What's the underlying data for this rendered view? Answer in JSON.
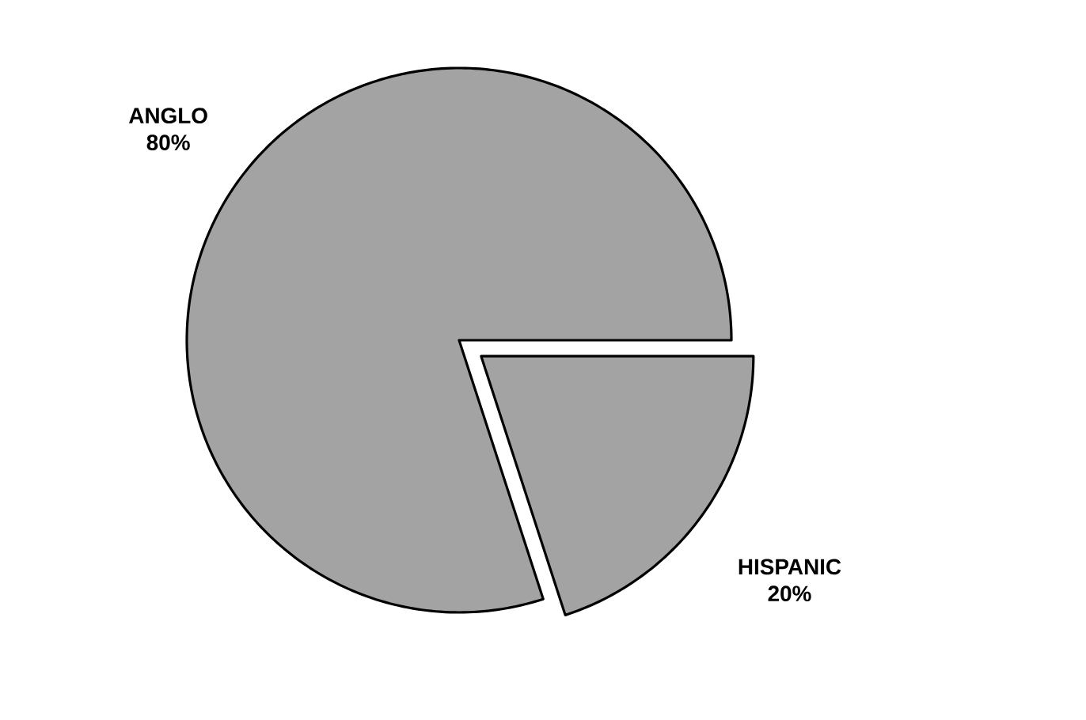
{
  "chart_data": {
    "type": "pie",
    "categories": [
      "ANGLO",
      "HISPANIC"
    ],
    "values": [
      80,
      20
    ],
    "value_labels": [
      "80%",
      "20%"
    ],
    "colors": [
      "#a3a3a3",
      "#a3a3a3"
    ]
  }
}
